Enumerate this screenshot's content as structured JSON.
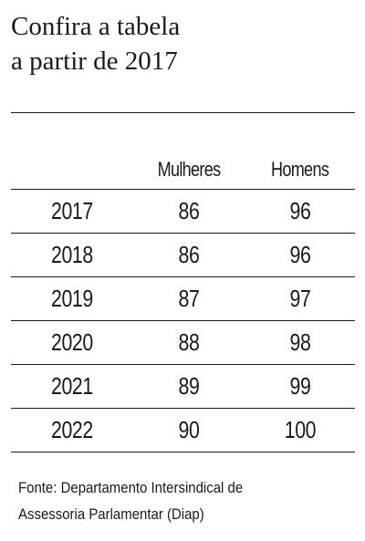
{
  "title": {
    "line1": "Confira a tabela",
    "line2": "a partir de 2017"
  },
  "table": {
    "headers": [
      "",
      "Mulheres",
      "Homens"
    ],
    "rows": [
      {
        "year": "2017",
        "mulheres": "86",
        "homens": "96"
      },
      {
        "year": "2018",
        "mulheres": "86",
        "homens": "96"
      },
      {
        "year": "2019",
        "mulheres": "87",
        "homens": "97"
      },
      {
        "year": "2020",
        "mulheres": "88",
        "homens": "98"
      },
      {
        "year": "2021",
        "mulheres": "89",
        "homens": "99"
      },
      {
        "year": "2022",
        "mulheres": "90",
        "homens": "100"
      }
    ]
  },
  "source": {
    "line1": "Fonte: Departamento Intersindical de",
    "line2": "Assessoria Parlamentar (Diap)"
  }
}
